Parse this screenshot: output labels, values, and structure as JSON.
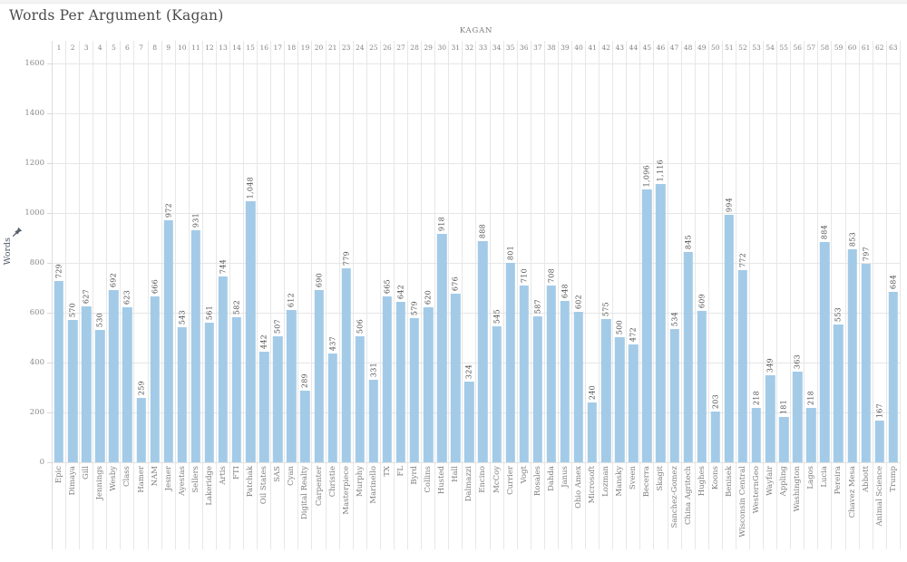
{
  "title": "Words Per Argument (Kagan)",
  "chart_data": {
    "type": "bar",
    "title": "Words Per Argument (Kagan)",
    "column_field": "KAGAN",
    "ylabel": "Words",
    "ylim": [
      0,
      1600
    ],
    "yticks": [
      0,
      200,
      400,
      600,
      800,
      1000,
      1200,
      1400,
      1600
    ],
    "grid": "horizontal",
    "bar_color": "#a3cbe8",
    "value_labels_rotated": true,
    "icons": {
      "axis_pin": "pushpin-icon"
    },
    "columns": [
      {
        "num": "1",
        "case": "Epic",
        "value": 729
      },
      {
        "num": "2",
        "case": "Dimaya",
        "value": 570
      },
      {
        "num": "3",
        "case": "Gill",
        "value": 627
      },
      {
        "num": "4",
        "case": "Jennings",
        "value": 530
      },
      {
        "num": "5",
        "case": "Wesby",
        "value": 692
      },
      {
        "num": "6",
        "case": "Class",
        "value": 623
      },
      {
        "num": "7",
        "case": "Hamer",
        "value": 259
      },
      {
        "num": "8",
        "case": "NAM",
        "value": 666
      },
      {
        "num": "9",
        "case": "Jesner",
        "value": 972
      },
      {
        "num": "10",
        "case": "Ayestas",
        "value": 543
      },
      {
        "num": "11",
        "case": "Sellers",
        "value": 931
      },
      {
        "num": "12",
        "case": "Lakeridge",
        "value": 561
      },
      {
        "num": "13",
        "case": "Artis",
        "value": 744
      },
      {
        "num": "14",
        "case": "FTI",
        "value": 582
      },
      {
        "num": "15",
        "case": "Patchak",
        "value": 1048
      },
      {
        "num": "16",
        "case": "Oil States",
        "value": 442
      },
      {
        "num": "17",
        "case": "SAS",
        "value": 507
      },
      {
        "num": "18",
        "case": "Cyan",
        "value": 612
      },
      {
        "num": "19",
        "case": "Digital Realty",
        "value": 289
      },
      {
        "num": "20",
        "case": "Carpenter",
        "value": 690
      },
      {
        "num": "21",
        "case": "Christie",
        "value": 437
      },
      {
        "num": "23",
        "case": "Masterpiece",
        "value": 779
      },
      {
        "num": "24",
        "case": "Murphy",
        "value": 506
      },
      {
        "num": "25",
        "case": "Marinello",
        "value": 331
      },
      {
        "num": "26",
        "case": "TX",
        "value": 665
      },
      {
        "num": "27",
        "case": "FL",
        "value": 642
      },
      {
        "num": "28",
        "case": "Byrd",
        "value": 579
      },
      {
        "num": "29",
        "case": "Collins",
        "value": 620
      },
      {
        "num": "30",
        "case": "Husted",
        "value": 918
      },
      {
        "num": "31",
        "case": "Hall",
        "value": 676
      },
      {
        "num": "32",
        "case": "Dalmazzi",
        "value": 324
      },
      {
        "num": "33",
        "case": "Encino",
        "value": 888
      },
      {
        "num": "34",
        "case": "McCoy",
        "value": 545
      },
      {
        "num": "35",
        "case": "Currier",
        "value": 801
      },
      {
        "num": "36",
        "case": "Vogt",
        "value": 710
      },
      {
        "num": "37",
        "case": "Rosales",
        "value": 587
      },
      {
        "num": "38",
        "case": "Dahda",
        "value": 708
      },
      {
        "num": "39",
        "case": "Janus",
        "value": 648
      },
      {
        "num": "40",
        "case": "Ohio Amex",
        "value": 602
      },
      {
        "num": "41",
        "case": "Microsoft",
        "value": 240
      },
      {
        "num": "42",
        "case": "Lozman",
        "value": 575
      },
      {
        "num": "43",
        "case": "Mansky",
        "value": 500
      },
      {
        "num": "44",
        "case": "Sveen",
        "value": 472
      },
      {
        "num": "45",
        "case": "Becerra",
        "value": 1096
      },
      {
        "num": "46",
        "case": "Skagit",
        "value": 1116
      },
      {
        "num": "47",
        "case": "Sanchez-Gomez",
        "value": 534
      },
      {
        "num": "48",
        "case": "China Agritech",
        "value": 845
      },
      {
        "num": "49",
        "case": "Hughes",
        "value": 609
      },
      {
        "num": "50",
        "case": "Koons",
        "value": 203
      },
      {
        "num": "51",
        "case": "Benisek",
        "value": 994
      },
      {
        "num": "52",
        "case": "Wisconsin Central",
        "value": 772
      },
      {
        "num": "53",
        "case": "WesternGeo",
        "value": 218
      },
      {
        "num": "54",
        "case": "Wayfair",
        "value": 349
      },
      {
        "num": "55",
        "case": "Appling",
        "value": 181
      },
      {
        "num": "56",
        "case": "Washington",
        "value": 363
      },
      {
        "num": "57",
        "case": "Lagos",
        "value": 218
      },
      {
        "num": "58",
        "case": "Lucia",
        "value": 884
      },
      {
        "num": "59",
        "case": "Pereira",
        "value": 553
      },
      {
        "num": "60",
        "case": "Chavez Mesa",
        "value": 853
      },
      {
        "num": "61",
        "case": "Abbott",
        "value": 797
      },
      {
        "num": "62",
        "case": "Animal Science",
        "value": 167
      },
      {
        "num": "63",
        "case": "Trump",
        "value": 684
      }
    ]
  }
}
